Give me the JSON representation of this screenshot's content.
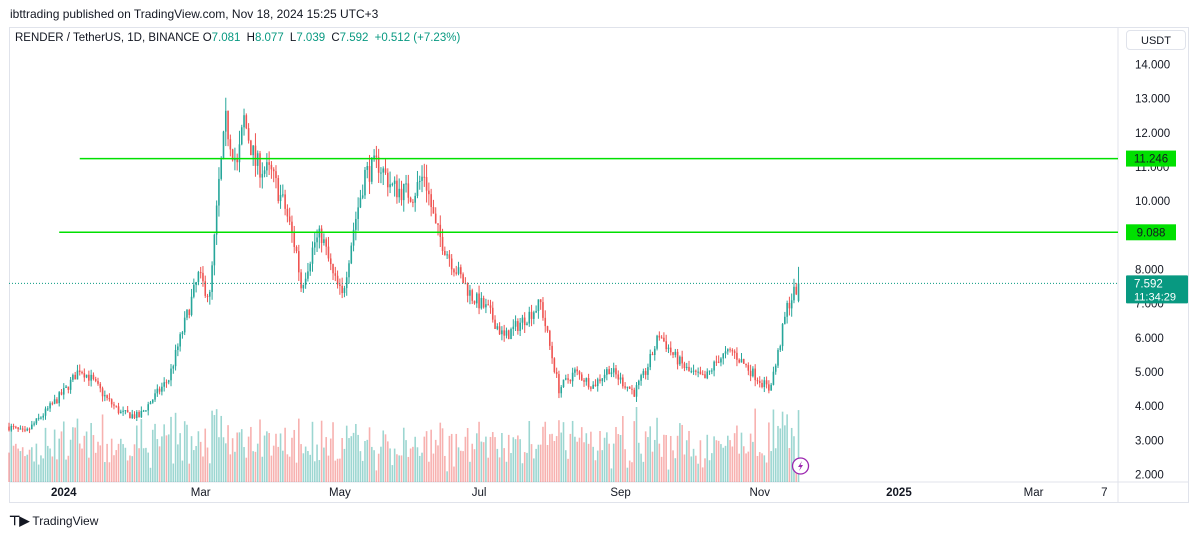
{
  "publish_line": "ibttrading published on TradingView.com, Nov 18, 2024 15:25 UTC+3",
  "footer": {
    "brand": "TradingView",
    "logo_icon": "tradingview-logo-icon"
  },
  "legend": {
    "symbol": "RENDER / TetherUS, 1D, BINANCE",
    "open_label": "O",
    "open": "7.081",
    "high_label": "H",
    "high": "8.077",
    "low_label": "L",
    "low": "7.039",
    "close_label": "C",
    "close": "7.592",
    "change": "+0.512 (+7.23%)"
  },
  "currency": "USDT",
  "colors": {
    "up": "#26a69a",
    "down": "#ef5350",
    "level": "#00e000",
    "price": "#089981"
  },
  "chart_data": {
    "type": "candlestick",
    "ylim": [
      1.8,
      14.5
    ],
    "y_ticks": [
      "14.000",
      "13.000",
      "12.000",
      "11.000",
      "10.000",
      "9.000",
      "8.000",
      "7.000",
      "6.000",
      "5.000",
      "4.000",
      "3.000",
      "2.000"
    ],
    "y_tick_values": [
      14,
      13,
      12,
      11,
      10,
      9,
      8,
      7,
      6,
      5,
      4,
      3,
      2
    ],
    "x_range": [
      "2023-12-08",
      "2025-04-07"
    ],
    "x_ticks": [
      {
        "date": "2024-01-01",
        "label": "2024",
        "bold": true
      },
      {
        "date": "2024-03-01",
        "label": "Mar",
        "bold": false
      },
      {
        "date": "2024-05-01",
        "label": "May",
        "bold": false
      },
      {
        "date": "2024-07-01",
        "label": "Jul",
        "bold": false
      },
      {
        "date": "2024-09-01",
        "label": "Sep",
        "bold": false
      },
      {
        "date": "2024-11-01",
        "label": "Nov",
        "bold": false
      },
      {
        "date": "2025-01-01",
        "label": "2025",
        "bold": true
      },
      {
        "date": "2025-03-01",
        "label": "Mar",
        "bold": false
      },
      {
        "date": "2025-04-01",
        "label": "7",
        "bold": false
      }
    ],
    "horizontal_levels": [
      {
        "value": 11.246,
        "label": "11.246",
        "from": "2024-01-08"
      },
      {
        "value": 9.088,
        "label": "9.088",
        "from": "2023-12-30"
      }
    ],
    "last_price": {
      "value": 7.592,
      "label": "7.592",
      "countdown": "11:34:29"
    },
    "anchors": [
      [
        "2023-12-08",
        3.4
      ],
      [
        "2023-12-15",
        3.2
      ],
      [
        "2023-12-25",
        3.9
      ],
      [
        "2024-01-02",
        4.5
      ],
      [
        "2024-01-08",
        5.1
      ],
      [
        "2024-01-13",
        4.8
      ],
      [
        "2024-01-20",
        4.2
      ],
      [
        "2024-01-26",
        3.8
      ],
      [
        "2024-02-03",
        3.7
      ],
      [
        "2024-02-10",
        4.3
      ],
      [
        "2024-02-16",
        4.8
      ],
      [
        "2024-02-22",
        6.2
      ],
      [
        "2024-02-29",
        7.8
      ],
      [
        "2024-03-05",
        7.2
      ],
      [
        "2024-03-09",
        10.5
      ],
      [
        "2024-03-12",
        12.3
      ],
      [
        "2024-03-17",
        11.0
      ],
      [
        "2024-03-20",
        12.4
      ],
      [
        "2024-03-25",
        11.1
      ],
      [
        "2024-04-01",
        10.8
      ],
      [
        "2024-04-07",
        9.8
      ],
      [
        "2024-04-12",
        8.5
      ],
      [
        "2024-04-14",
        7.5
      ],
      [
        "2024-04-20",
        8.8
      ],
      [
        "2024-04-23",
        9.0
      ],
      [
        "2024-04-28",
        7.8
      ],
      [
        "2024-05-02",
        7.2
      ],
      [
        "2024-05-07",
        9.2
      ],
      [
        "2024-05-12",
        10.8
      ],
      [
        "2024-05-18",
        11.1
      ],
      [
        "2024-05-24",
        10.4
      ],
      [
        "2024-06-02",
        10.2
      ],
      [
        "2024-06-07",
        10.8
      ],
      [
        "2024-06-12",
        9.2
      ],
      [
        "2024-06-20",
        8.1
      ],
      [
        "2024-06-28",
        7.2
      ],
      [
        "2024-07-05",
        6.8
      ],
      [
        "2024-07-12",
        6.0
      ],
      [
        "2024-07-20",
        6.5
      ],
      [
        "2024-07-28",
        7.0
      ],
      [
        "2024-08-05",
        4.5
      ],
      [
        "2024-08-12",
        5.0
      ],
      [
        "2024-08-20",
        4.6
      ],
      [
        "2024-08-27",
        5.1
      ],
      [
        "2024-09-02",
        4.7
      ],
      [
        "2024-09-07",
        4.4
      ],
      [
        "2024-09-12",
        5.0
      ],
      [
        "2024-09-18",
        6.1
      ],
      [
        "2024-09-24",
        5.5
      ],
      [
        "2024-10-01",
        5.0
      ],
      [
        "2024-10-08",
        4.8
      ],
      [
        "2024-10-14",
        5.4
      ],
      [
        "2024-10-20",
        5.6
      ],
      [
        "2024-10-27",
        5.1
      ],
      [
        "2024-11-05",
        4.5
      ],
      [
        "2024-11-08",
        5.2
      ],
      [
        "2024-11-13",
        6.9
      ],
      [
        "2024-11-18",
        7.59
      ]
    ]
  }
}
